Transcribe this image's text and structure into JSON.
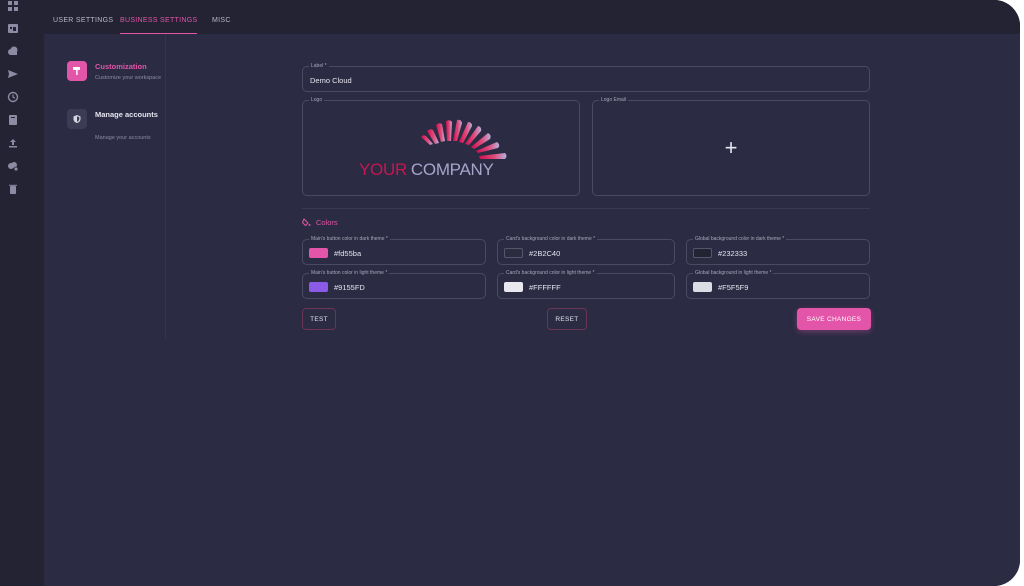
{
  "tabs": [
    "USER SETTINGS",
    "BUSINESS SETTINGS",
    "MISC"
  ],
  "active_tab": "BUSINESS SETTINGS",
  "rail_icons": [
    "dashboard-icon",
    "calendar-icon",
    "cloud-icon",
    "send-icon",
    "history-icon",
    "book-icon",
    "upload-icon",
    "cloud-settings-icon",
    "trash-icon"
  ],
  "sidebar": {
    "items": [
      {
        "label": "Customization",
        "sub": "Customize your workspace",
        "icon": "paint-roller-icon"
      },
      {
        "label": "Manage accounts",
        "sub": "Manage your accounts",
        "icon": "shield-icon"
      }
    ]
  },
  "form": {
    "label_field": {
      "legend": "Label *",
      "value": "Demo Cloud"
    },
    "logo": {
      "legend": "Logo",
      "company_word1": "YOUR",
      "company_word2": "COMPANY"
    },
    "logo_email": {
      "legend": "Logo Email",
      "placeholder_icon": "+"
    },
    "colors_heading": "Colors",
    "colors": [
      {
        "legend": "Main's button color in dark theme *",
        "hex": "#fd55ba",
        "swatch": "#e255a8"
      },
      {
        "legend": "Card's background color in dark theme *",
        "hex": "#2B2C40",
        "swatch": "#2b2c40"
      },
      {
        "legend": "Global background color in dark theme *",
        "hex": "#232333",
        "swatch": "#232333"
      },
      {
        "legend": "Main's button color in light theme *",
        "hex": "#9155FD",
        "swatch": "#8b5ae6"
      },
      {
        "legend": "Card's background color in light theme *",
        "hex": "#FFFFFF",
        "swatch": "#e8e8ee"
      },
      {
        "legend": "Global background in light theme *",
        "hex": "#F5F5F9",
        "swatch": "#dcdce4"
      }
    ]
  },
  "buttons": {
    "test": "TEST",
    "reset": "RESET",
    "save": "SAVE CHANGES"
  },
  "colors_theme": {
    "accent": "#e255a8",
    "card": "#2b2b43",
    "background": "#232333"
  }
}
